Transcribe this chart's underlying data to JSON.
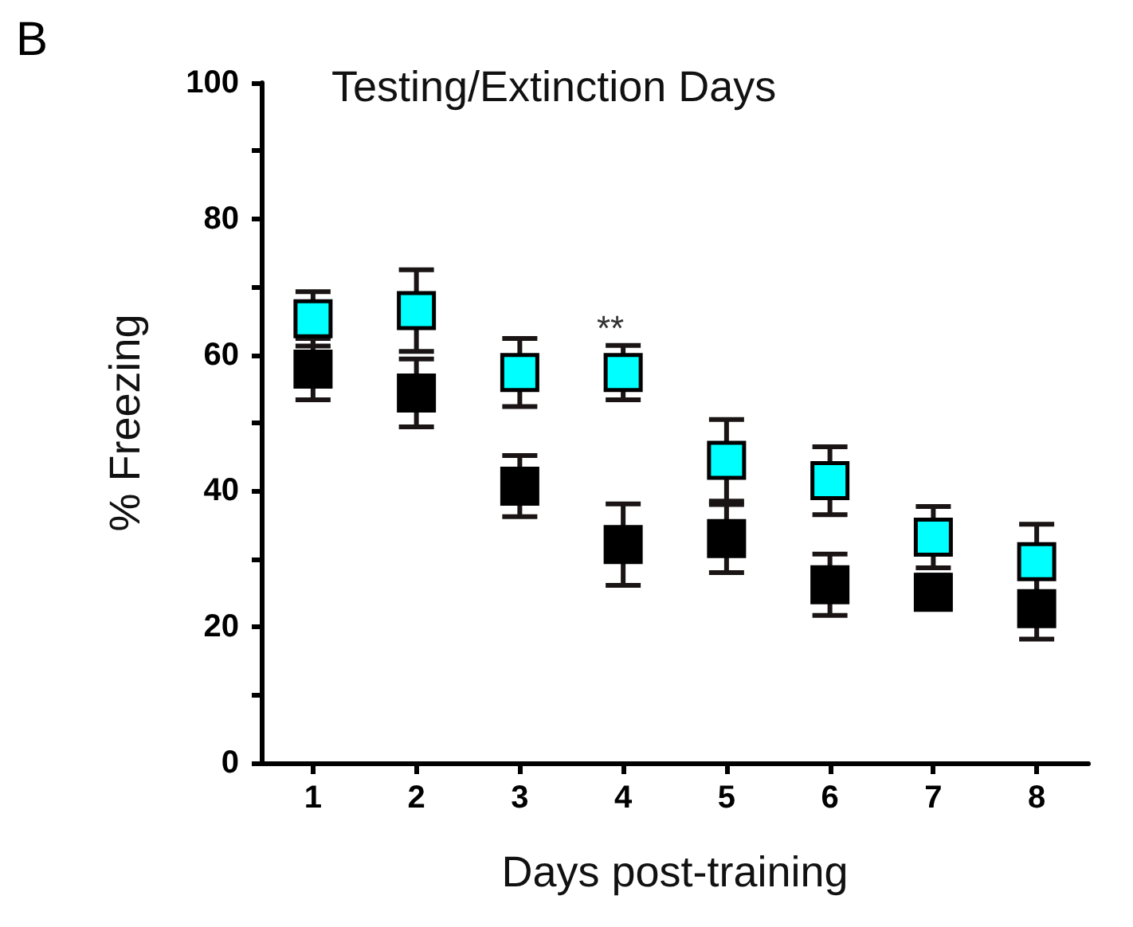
{
  "chart_data": {
    "type": "scatter",
    "title": "Testing/Extinction Days",
    "xlabel": "Days post-training",
    "ylabel": "% Freezing",
    "annotations": [
      "B",
      "**"
    ],
    "categories": [
      "1",
      "2",
      "3",
      "4",
      "5",
      "6",
      "7",
      "8"
    ],
    "series": [
      {
        "color": "#000000",
        "values": [
          57.9,
          54.4,
          40.7,
          32.1,
          33,
          26.2,
          25.1,
          22.7
        ],
        "errors": [
          4.5,
          5,
          4.5,
          6,
          5,
          4.5,
          2.5,
          4.5
        ]
      },
      {
        "color": "#00ffff",
        "values": [
          65.3,
          66.5,
          57.4,
          57.4,
          44.5,
          41.5,
          33.2,
          29.6
        ],
        "errors": [
          4,
          6,
          5,
          4,
          6,
          5,
          4.5,
          5.5
        ]
      }
    ],
    "ylim": [
      0,
      100
    ],
    "yticks": [
      0,
      {
        "value": 10,
        "label": null
      },
      20,
      {
        "value": 30,
        "label": null
      },
      40,
      {
        "value": 50,
        "label": null
      },
      60,
      {
        "value": 70,
        "label": null
      },
      80,
      {
        "value": 90,
        "label": null
      },
      100
    ],
    "marker": "square",
    "grid": false
  }
}
